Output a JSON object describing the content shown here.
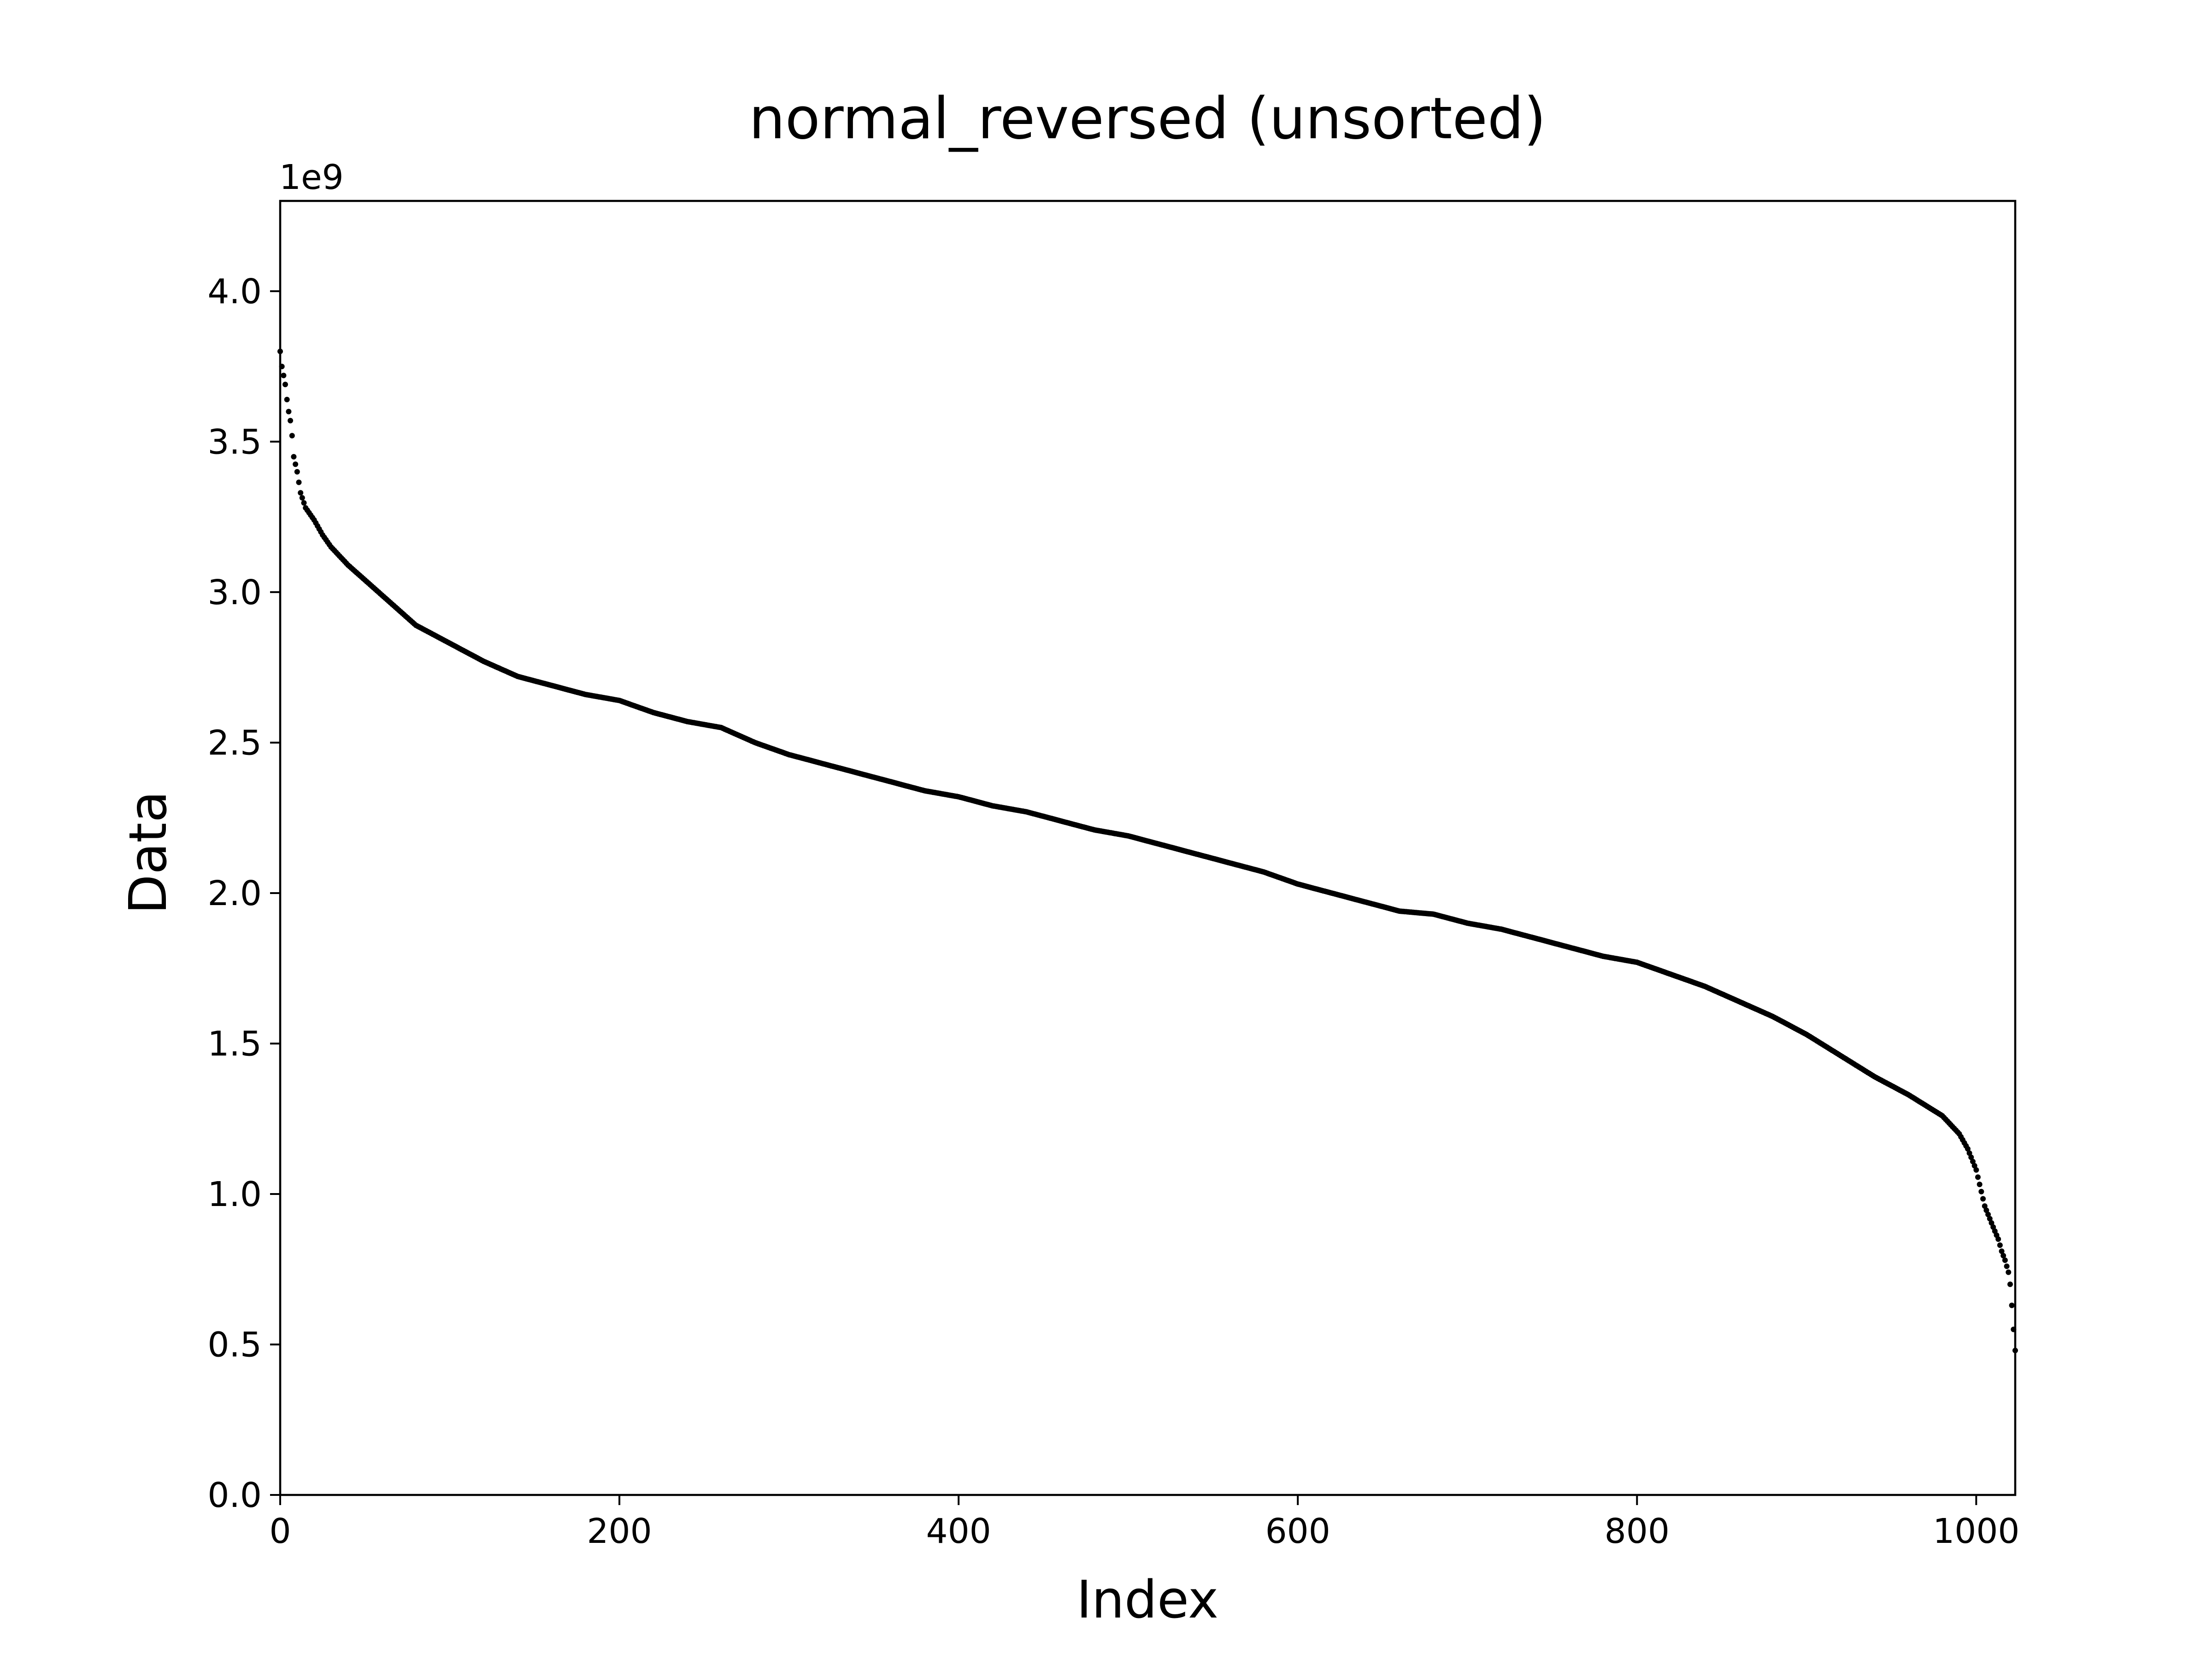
{
  "chart_data": {
    "type": "scatter",
    "title": "normal_reversed (unsorted)",
    "xlabel": "Index",
    "ylabel": "Data",
    "y_offset_label": "1e9",
    "y_scale_factor": 1000000000,
    "xlim": [
      0,
      1023
    ],
    "ylim": [
      0,
      4.3
    ],
    "x_ticks": [
      0,
      200,
      400,
      600,
      800,
      1000
    ],
    "x_tick_labels": [
      "0",
      "200",
      "400",
      "600",
      "800",
      "1000"
    ],
    "y_ticks": [
      0,
      0.5,
      1.0,
      1.5,
      2.0,
      2.5,
      3.0,
      3.5,
      4.0
    ],
    "y_tick_labels": [
      "0.0",
      "0.5",
      "1.0",
      "1.5",
      "2.0",
      "2.5",
      "3.0",
      "3.5",
      "4.0"
    ],
    "grid": false,
    "legend": "none",
    "marker_color": "#000000",
    "n_points": 1024,
    "series": [
      {
        "x": [
          0,
          1,
          2,
          3,
          4,
          5,
          6,
          7,
          8,
          10,
          12,
          15,
          20,
          25,
          30,
          40,
          50,
          60,
          70,
          80,
          90,
          100,
          120,
          140,
          160,
          180,
          200,
          220,
          240,
          260,
          280,
          300,
          320,
          340,
          360,
          380,
          400,
          420,
          440,
          460,
          480,
          500,
          520,
          540,
          560,
          580,
          600,
          620,
          640,
          660,
          680,
          700,
          720,
          740,
          760,
          780,
          800,
          820,
          840,
          860,
          880,
          900,
          920,
          940,
          960,
          980,
          990,
          995,
          1000,
          1005,
          1010,
          1013,
          1015,
          1017,
          1019,
          1020,
          1021,
          1022,
          1023
        ],
        "y": [
          3.8,
          3.75,
          3.72,
          3.69,
          3.64,
          3.6,
          3.57,
          3.52,
          3.45,
          3.4,
          3.33,
          3.28,
          3.24,
          3.19,
          3.15,
          3.09,
          3.04,
          2.99,
          2.94,
          2.89,
          2.86,
          2.83,
          2.77,
          2.72,
          2.69,
          2.66,
          2.64,
          2.6,
          2.57,
          2.55,
          2.5,
          2.46,
          2.43,
          2.4,
          2.37,
          2.34,
          2.32,
          2.29,
          2.27,
          2.24,
          2.21,
          2.19,
          2.16,
          2.13,
          2.1,
          2.07,
          2.03,
          2.0,
          1.97,
          1.94,
          1.93,
          1.9,
          1.88,
          1.85,
          1.82,
          1.79,
          1.77,
          1.73,
          1.69,
          1.64,
          1.59,
          1.53,
          1.46,
          1.39,
          1.33,
          1.26,
          1.2,
          1.15,
          1.08,
          0.96,
          0.89,
          0.85,
          0.81,
          0.78,
          0.74,
          0.7,
          0.63,
          0.55,
          0.48
        ]
      }
    ]
  }
}
